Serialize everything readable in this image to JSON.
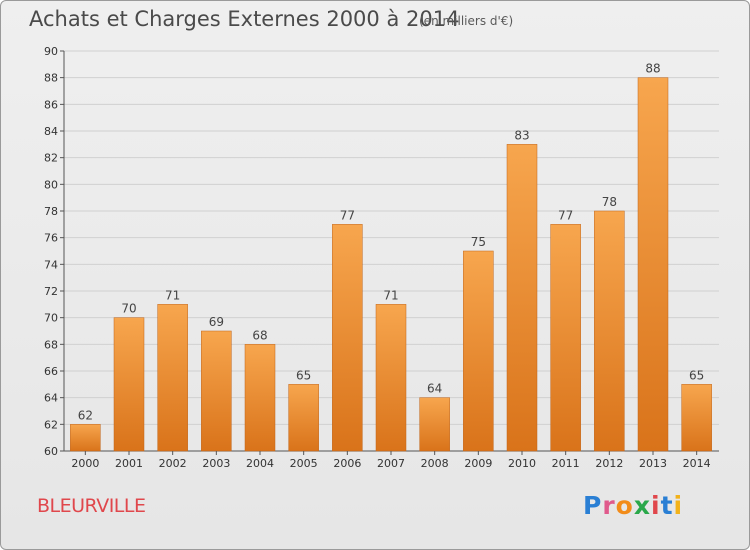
{
  "header": {
    "title": "Achats et Charges Externes 2000 à 2014",
    "subtitle": "(en milliers d'€)"
  },
  "footer": {
    "commune": "BLEURVILLE",
    "logo_letters": [
      "P",
      "r",
      "o",
      "x",
      "i",
      "t",
      "i"
    ],
    "logo_colors": [
      "#2a7fd4",
      "#e05a8c",
      "#f28c1a",
      "#2aa84a",
      "#e0474c",
      "#2a7fd4",
      "#f2b21a"
    ]
  },
  "colors": {
    "bar_top": "#f7a64e",
    "bar_bottom": "#d9731a",
    "bar_border": "#c0651a",
    "grid": "#d0d0d0",
    "axis": "#555555"
  },
  "chart_data": {
    "type": "bar",
    "categories": [
      "2000",
      "2001",
      "2002",
      "2003",
      "2004",
      "2005",
      "2006",
      "2007",
      "2008",
      "2009",
      "2010",
      "2011",
      "2012",
      "2013",
      "2014"
    ],
    "values": [
      62,
      70,
      71,
      69,
      68,
      65,
      77,
      71,
      64,
      75,
      83,
      77,
      78,
      88,
      65
    ],
    "data_labels": [
      "62",
      "70",
      "71",
      "69",
      "68",
      "65",
      "77",
      "71",
      "64",
      "75",
      "83",
      "77",
      "78",
      "88",
      "65"
    ],
    "y_ticks": [
      60,
      62,
      64,
      66,
      68,
      70,
      72,
      74,
      76,
      78,
      80,
      82,
      84,
      86,
      88,
      90
    ],
    "y_tick_labels": [
      "60",
      "62",
      "64",
      "66",
      "68",
      "70",
      "72",
      "74",
      "76",
      "78",
      "80",
      "82",
      "84",
      "86",
      "88",
      "90"
    ],
    "ylim": [
      60,
      90
    ],
    "grid": true,
    "title": "Achats et Charges Externes 2000 à 2014",
    "xlabel": "",
    "ylabel": ""
  }
}
